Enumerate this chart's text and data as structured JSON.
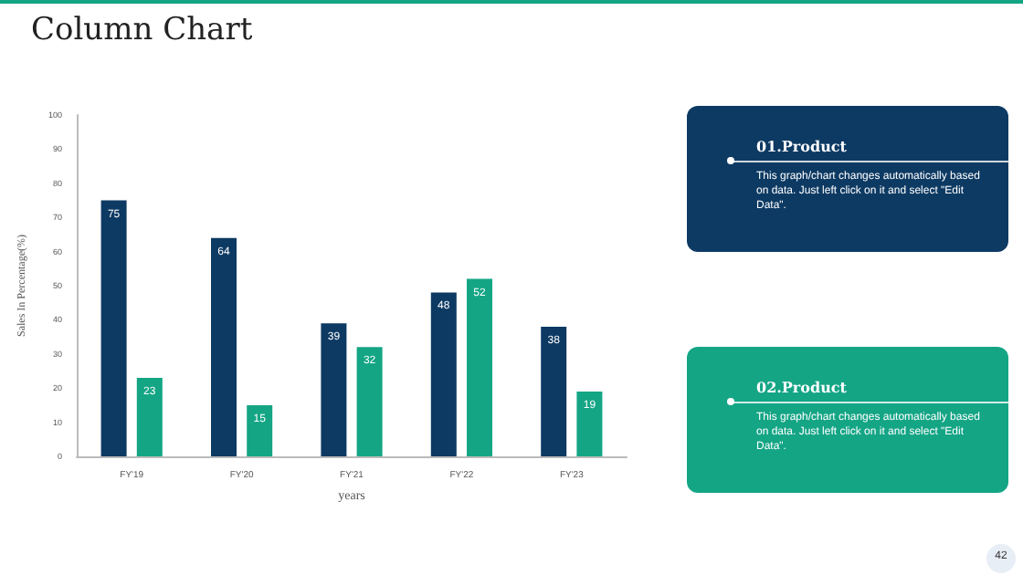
{
  "chart_data": {
    "type": "bar",
    "title": "Column Chart",
    "xlabel": "years",
    "ylabel": "Sales In Percentage(%)",
    "categories": [
      "FY'19",
      "FY'20",
      "FY'21",
      "FY'22",
      "FY'23"
    ],
    "series": [
      {
        "name": "01.Product",
        "color": "#0d3a63",
        "values": [
          75,
          64,
          39,
          48,
          38
        ]
      },
      {
        "name": "02.Product",
        "color": "#14a585",
        "values": [
          23,
          15,
          32,
          52,
          19
        ]
      }
    ],
    "ylim": [
      0,
      100
    ],
    "yticks": [
      0,
      10,
      20,
      30,
      40,
      50,
      60,
      70,
      80,
      90,
      100
    ],
    "grid": false,
    "legend": "right",
    "data_labels": true,
    "annotations": [
      "This graph/chart changes automatically based on data. Just left click on it and select \"Edit Data\".",
      "This graph/chart changes automatically based on data. Just left click on it and select \"Edit Data\".",
      "42"
    ]
  }
}
